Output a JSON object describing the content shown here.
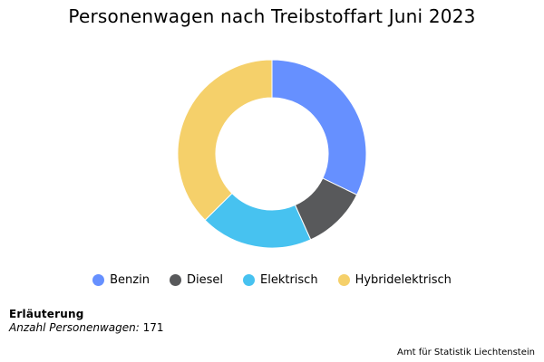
{
  "chart_data": {
    "type": "pie",
    "title": "Personenwagen nach Treibstoffart Juni 2023",
    "series": [
      {
        "name": "Benzin",
        "value": 55,
        "color": "#6690FF"
      },
      {
        "name": "Diesel",
        "value": 19,
        "color": "#58595B"
      },
      {
        "name": "Elektrisch",
        "value": 33,
        "color": "#47C2F0"
      },
      {
        "name": "Hybridelektrisch",
        "value": 64,
        "color": "#F5D06A"
      }
    ],
    "legend_position": "bottom"
  },
  "note": {
    "heading": "Erläuterung",
    "label": "Anzahl Personenwagen:",
    "value": "171"
  },
  "source": "Amt für Statistik Liechtenstein"
}
